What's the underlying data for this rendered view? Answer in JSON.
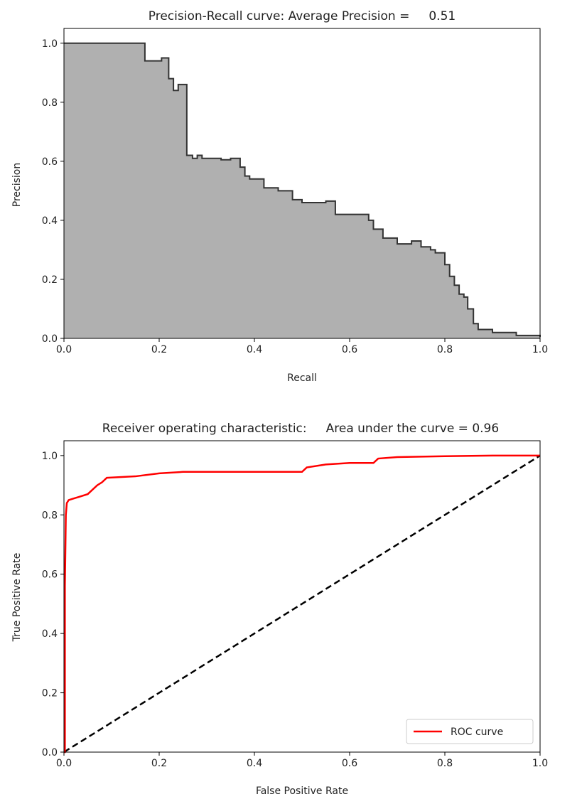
{
  "chart_data": [
    {
      "type": "area",
      "title": "Precision-Recall curve: Average Precision =     0.51",
      "xlabel": "Recall",
      "ylabel": "Precision",
      "xlim": [
        0.0,
        1.0
      ],
      "ylim": [
        0.0,
        1.05
      ],
      "xticks": [
        "0.0",
        "0.2",
        "0.4",
        "0.6",
        "0.8",
        "1.0"
      ],
      "yticks": [
        "0.0",
        "0.2",
        "0.4",
        "0.6",
        "0.8",
        "1.0"
      ],
      "grid": false,
      "fill_color": "#b0b0b0",
      "line_color": "#333333",
      "series": [
        {
          "x": [
            0.0,
            0.17,
            0.17,
            0.205,
            0.22,
            0.22,
            0.23,
            0.23,
            0.24,
            0.24,
            0.258,
            0.258,
            0.27,
            0.28,
            0.29,
            0.31,
            0.33,
            0.35,
            0.37,
            0.38,
            0.39,
            0.42,
            0.45,
            0.48,
            0.5,
            0.52,
            0.55,
            0.57,
            0.6,
            0.64,
            0.65,
            0.67,
            0.7,
            0.73,
            0.75,
            0.77,
            0.78,
            0.8,
            0.81,
            0.82,
            0.83,
            0.84,
            0.848,
            0.86,
            0.87,
            0.9,
            0.95,
            1.0
          ],
          "y": [
            1.0,
            1.0,
            0.94,
            0.95,
            0.95,
            0.88,
            0.88,
            0.84,
            0.84,
            0.86,
            0.86,
            0.62,
            0.61,
            0.62,
            0.61,
            0.61,
            0.605,
            0.61,
            0.58,
            0.55,
            0.54,
            0.51,
            0.5,
            0.47,
            0.46,
            0.46,
            0.465,
            0.42,
            0.42,
            0.4,
            0.37,
            0.34,
            0.32,
            0.33,
            0.31,
            0.3,
            0.29,
            0.25,
            0.21,
            0.18,
            0.15,
            0.14,
            0.1,
            0.05,
            0.03,
            0.02,
            0.01,
            0.005
          ]
        }
      ]
    },
    {
      "type": "line",
      "title": "Receiver operating characteristic:     Area under the curve = 0.96",
      "xlabel": "False Positive Rate",
      "ylabel": "True Positive Rate",
      "xlim": [
        0.0,
        1.0
      ],
      "ylim": [
        0.0,
        1.05
      ],
      "xticks": [
        "0.0",
        "0.2",
        "0.4",
        "0.6",
        "0.8",
        "1.0"
      ],
      "yticks": [
        "0.0",
        "0.2",
        "0.4",
        "0.6",
        "0.8",
        "1.0"
      ],
      "grid": false,
      "legend_position": "lower-right",
      "series": [
        {
          "name": "ROC curve",
          "color": "#ff0000",
          "style": "solid",
          "x": [
            0.0,
            0.002,
            0.002,
            0.004,
            0.006,
            0.01,
            0.02,
            0.03,
            0.05,
            0.06,
            0.07,
            0.08,
            0.09,
            0.15,
            0.2,
            0.25,
            0.3,
            0.4,
            0.5,
            0.51,
            0.55,
            0.6,
            0.65,
            0.66,
            0.7,
            0.8,
            0.9,
            1.0
          ],
          "y": [
            0.0,
            0.0,
            0.56,
            0.8,
            0.84,
            0.85,
            0.855,
            0.86,
            0.87,
            0.885,
            0.9,
            0.91,
            0.925,
            0.93,
            0.94,
            0.945,
            0.945,
            0.945,
            0.945,
            0.96,
            0.97,
            0.975,
            0.975,
            0.99,
            0.995,
            0.998,
            1.0,
            1.0
          ]
        },
        {
          "color": "#000000",
          "style": "dashed",
          "x": [
            0.0,
            1.0
          ],
          "y": [
            0.0,
            1.0
          ]
        }
      ]
    }
  ]
}
